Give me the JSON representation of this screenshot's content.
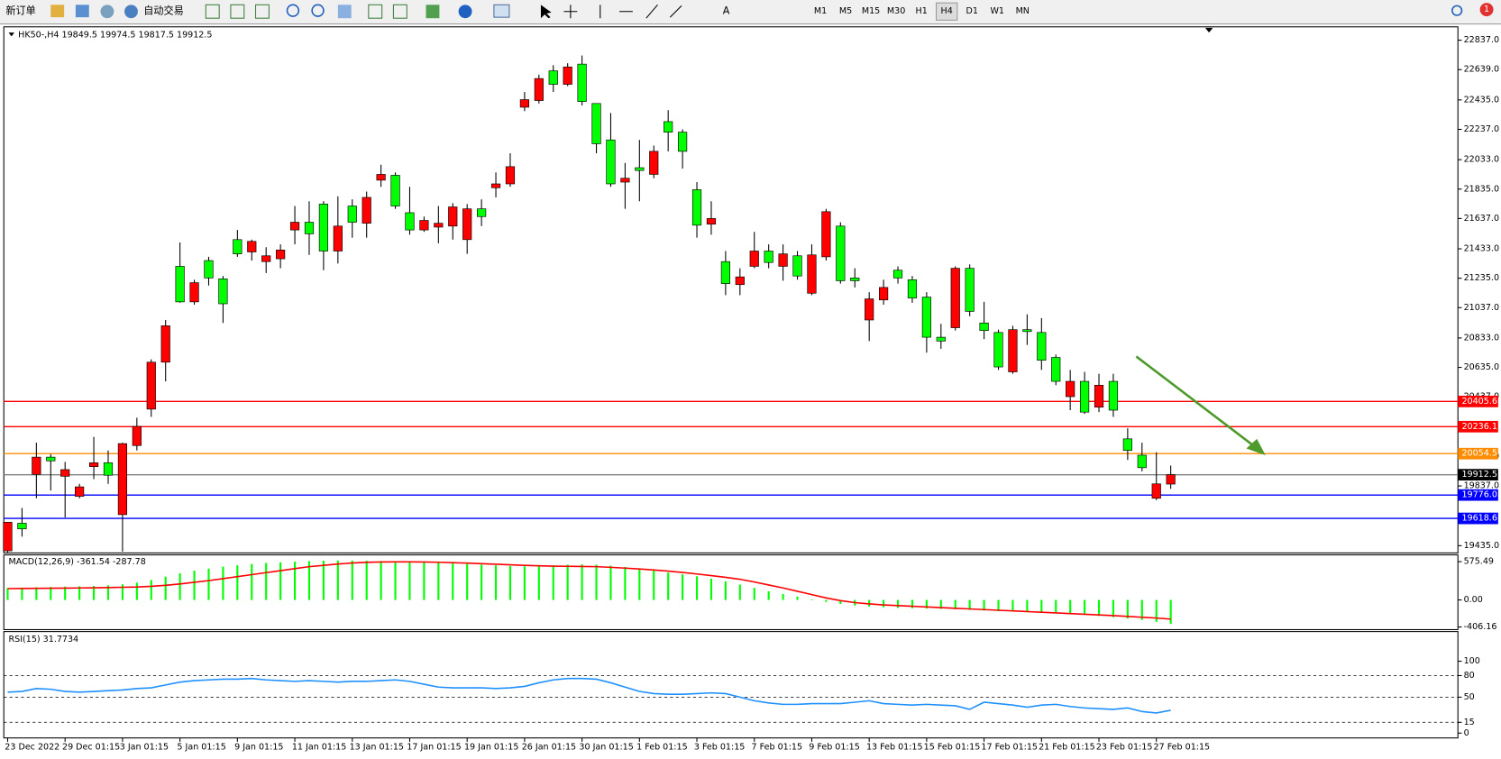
{
  "toolbar": {
    "new_order": "新订单",
    "auto_trading": "自动交易",
    "timeframes": [
      "M1",
      "M5",
      "M15",
      "M30",
      "H1",
      "H4",
      "D1",
      "W1",
      "MN"
    ],
    "active_timeframe": "H4",
    "notifications": 1
  },
  "chart": {
    "type": "candlestick",
    "symbol": "HK50-,H4",
    "up_color": "#ff0000",
    "down_color": "#00ff00",
    "bid_color": "#808080",
    "open": [
      19400,
      19586,
      19915,
      20031,
      19902,
      19767,
      19967,
      19993,
      19644,
      20109,
      20354,
      20670,
      21315,
      21076,
      21354,
      21231,
      21495,
      21412,
      21347,
      21366,
      21560,
      21612,
      21734,
      21418,
      21721,
      21605,
      21895,
      21928,
      21676,
      21560,
      21579,
      21586,
      21495,
      21702,
      21844,
      21870,
      22386,
      22431,
      22631,
      22540,
      22676,
      22411,
      22166,
      21882,
      21979,
      21934,
      22289,
      22218,
      21831,
      21599,
      21347,
      21192,
      21315,
      21418,
      21315,
      21386,
      21134,
      21379,
      21586,
      21237,
      20954,
      21089,
      21289,
      21225,
      21108,
      20838,
      20902,
      21302,
      20934,
      20870,
      20605,
      20889,
      20870,
      20702,
      20438,
      20541,
      20367,
      20541,
      20154,
      20044,
      19754,
      19849.5
    ],
    "high": [
      19593,
      19689,
      20128,
      20051,
      19999,
      19851,
      20167,
      20076,
      20128,
      20296,
      20689,
      20954,
      21476,
      21225,
      21379,
      21250,
      21560,
      21495,
      21444,
      21463,
      21721,
      21753,
      21753,
      21786,
      21766,
      21818,
      21999,
      21947,
      21850,
      21650,
      21721,
      21741,
      21734,
      21766,
      21947,
      22076,
      22489,
      22605,
      22669,
      22682,
      22734,
      22411,
      22347,
      22011,
      22166,
      22128,
      22366,
      22237,
      21882,
      21753,
      21418,
      21302,
      21547,
      21463,
      21463,
      21418,
      21463,
      21702,
      21612,
      21302,
      21141,
      21225,
      21315,
      21250,
      21141,
      20928,
      21315,
      21328,
      21076,
      20889,
      20915,
      20992,
      20967,
      20721,
      20618,
      20605,
      20592,
      20592,
      20225,
      20128,
      20064,
      19974.5
    ],
    "low": [
      19390,
      19496,
      19754,
      19806,
      19625,
      19754,
      19883,
      19851,
      19395,
      20076,
      20302,
      20541,
      21070,
      21057,
      21186,
      20934,
      21379,
      21354,
      21270,
      21302,
      21463,
      21392,
      21289,
      21334,
      21508,
      21508,
      21850,
      21702,
      21528,
      21547,
      21470,
      21495,
      21399,
      21586,
      21779,
      21850,
      22360,
      22411,
      22489,
      22528,
      22398,
      22076,
      21850,
      21702,
      21753,
      21908,
      22089,
      21973,
      21508,
      21528,
      21121,
      21121,
      21302,
      21302,
      21218,
      21225,
      21121,
      21354,
      21199,
      21173,
      20812,
      21057,
      21199,
      21070,
      20734,
      20760,
      20883,
      20979,
      20825,
      20618,
      20592,
      20786,
      20618,
      20515,
      20347,
      20322,
      20334,
      20302,
      20012,
      19935,
      19741,
      19817.5
    ],
    "close": [
      19593,
      19548,
      20031,
      20006,
      19947,
      19831,
      19993,
      19909,
      20122,
      20238,
      20670,
      20915,
      21076,
      21205,
      21237,
      21063,
      21399,
      21483,
      21386,
      21425,
      21612,
      21534,
      21418,
      21586,
      21612,
      21779,
      21934,
      21721,
      21560,
      21624,
      21605,
      21715,
      21702,
      21650,
      21870,
      21986,
      22437,
      22579,
      22540,
      22657,
      22424,
      22140,
      21870,
      21908,
      21960,
      22089,
      22218,
      22089,
      21592,
      21637,
      21199,
      21244,
      21418,
      21341,
      21399,
      21250,
      21392,
      21683,
      21218,
      21218,
      21096,
      21173,
      21237,
      21102,
      20838,
      20812,
      21302,
      21012,
      20883,
      20638,
      20889,
      20876,
      20683,
      20541,
      20541,
      20334,
      20515,
      20347,
      20076,
      19960,
      19851,
      19912.5
    ],
    "ylim": [
      19386,
      22927
    ],
    "yticks": [
      {
        "value": 22837,
        "label": "22837.0"
      },
      {
        "value": 22639,
        "label": "22639.0"
      },
      {
        "value": 22435,
        "label": "22435.0"
      },
      {
        "value": 22237,
        "label": "22237.0"
      },
      {
        "value": 22033,
        "label": "22033.0"
      },
      {
        "value": 21835,
        "label": "21835.0"
      },
      {
        "value": 21637,
        "label": "21637.0"
      },
      {
        "value": 21433,
        "label": "21433.0"
      },
      {
        "value": 21235,
        "label": "21235.0"
      },
      {
        "value": 21037,
        "label": "21037.0"
      },
      {
        "value": 20833,
        "label": "20833.0"
      },
      {
        "value": 20635,
        "label": "20635.0"
      },
      {
        "value": 20437,
        "label": "20437.0"
      },
      {
        "value": 20035,
        "label": "20035.0"
      },
      {
        "value": 19837,
        "label": "19837.0"
      },
      {
        "value": 19435,
        "label": "19435.0"
      }
    ],
    "levels": [
      {
        "value": 20405.6,
        "color": "#ff0000"
      },
      {
        "value": 20236.1,
        "color": "#ff0000"
      },
      {
        "value": 20054.5,
        "color": "#ff8c00"
      },
      {
        "value": 19776,
        "label": "19776.0",
        "color": "#0000ff"
      },
      {
        "value": 19618.6,
        "color": "#0000ff"
      }
    ],
    "time_labels": [
      "23 Dec 2022",
      "29 Dec 01:15",
      "3 Jan 01:15",
      "5 Jan 01:15",
      "9 Jan 01:15",
      "11 Jan 01:15",
      "13 Jan 01:15",
      "17 Jan 01:15",
      "19 Jan 01:15",
      "26 Jan 01:15",
      "30 Jan 01:15",
      "1 Feb 01:15",
      "3 Feb 01:15",
      "7 Feb 01:15",
      "9 Feb 01:15",
      "13 Feb 01:15",
      "15 Feb 01:15",
      "17 Feb 01:15",
      "21 Feb 01:15",
      "23 Feb 01:15",
      "27 Feb 01:15"
    ],
    "macd": {
      "title": "MACD(12,26,9)",
      "main_color": "#00ff00",
      "signal_color": "#ff0000",
      "ylim": [
        -446,
        677
      ],
      "yticks": [
        575.49,
        {
          "value": 0,
          "label": "0.00"
        },
        -406.16
      ],
      "main": [
        180,
        185,
        190,
        195,
        200,
        205,
        210,
        220,
        235,
        260,
        300,
        350,
        400,
        440,
        470,
        500,
        520,
        540,
        555,
        565,
        575,
        585,
        590,
        592,
        592,
        590,
        585,
        580,
        575,
        570,
        560,
        550,
        540,
        530,
        520,
        510,
        505,
        510,
        520,
        530,
        535,
        530,
        515,
        495,
        470,
        440,
        410,
        385,
        355,
        320,
        280,
        230,
        180,
        130,
        90,
        50,
        10,
        -30,
        -60,
        -85,
        -100,
        -110,
        -120,
        -125,
        -130,
        -135,
        -140,
        -150,
        -160,
        -170,
        -175,
        -180,
        -190,
        -200,
        -210,
        -225,
        -240,
        -260,
        -280,
        -300,
        -330,
        -361.54
      ],
      "signal": [
        170,
        172,
        174,
        176,
        178,
        180,
        183,
        186,
        190,
        195,
        205,
        220,
        240,
        265,
        290,
        320,
        350,
        380,
        410,
        440,
        470,
        500,
        520,
        540,
        555,
        565,
        570,
        572,
        572,
        570,
        566,
        560,
        553,
        545,
        537,
        528,
        520,
        513,
        508,
        505,
        503,
        500,
        490,
        478,
        465,
        450,
        433,
        413,
        390,
        365,
        340,
        310,
        270,
        225,
        180,
        130,
        80,
        30,
        -10,
        -40,
        -60,
        -75,
        -85,
        -95,
        -105,
        -115,
        -125,
        -135,
        -145,
        -155,
        -165,
        -175,
        -185,
        -195,
        -205,
        -215,
        -225,
        -235,
        -248,
        -260,
        -272,
        -287.78
      ]
    },
    "rsi": {
      "title": "RSI(15)",
      "color": "#1e90ff",
      "ylim": [
        -6.7,
        141.3
      ],
      "yticks": [
        100,
        80,
        50,
        15,
        0
      ],
      "values": [
        57,
        58,
        62,
        61,
        58,
        57,
        58,
        59,
        60,
        62,
        63,
        67,
        71,
        73,
        74,
        75,
        75,
        76,
        74,
        73,
        72,
        73,
        72,
        71,
        72,
        72,
        73,
        74,
        72,
        68,
        64,
        63,
        63,
        63,
        62,
        63,
        65,
        70,
        74,
        76,
        76,
        75,
        70,
        64,
        58,
        55,
        54,
        54,
        55,
        56,
        55,
        50,
        45,
        42,
        40,
        40,
        41,
        41,
        41,
        43,
        45,
        41,
        40,
        39,
        40,
        39,
        38,
        33,
        43,
        41,
        39,
        36,
        39,
        40,
        37,
        35,
        34,
        33,
        35,
        30,
        28,
        31.7734
      ]
    }
  }
}
